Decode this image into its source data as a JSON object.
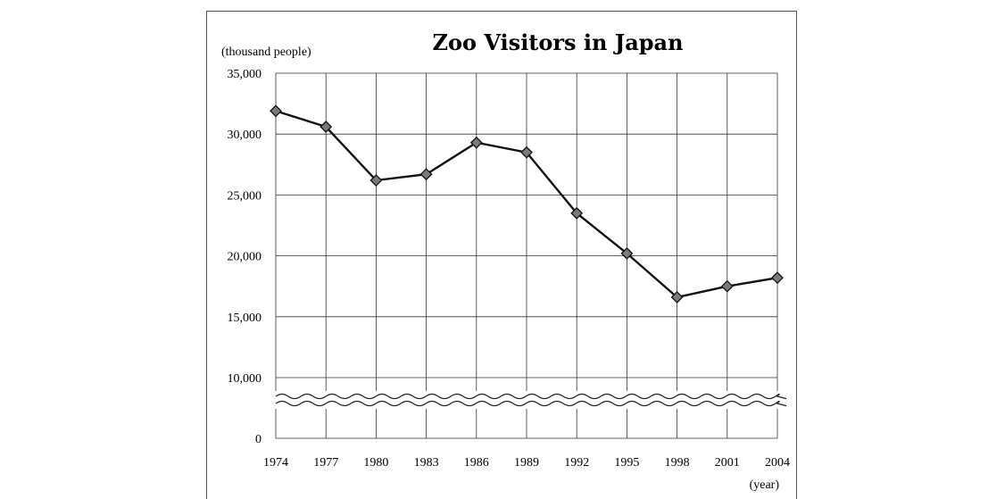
{
  "chart_data": {
    "type": "line",
    "title": "Zoo Visitors in Japan",
    "ylabel": "(thousand people)",
    "xlabel": "(year)",
    "x": [
      1974,
      1977,
      1980,
      1983,
      1986,
      1989,
      1992,
      1995,
      1998,
      2001,
      2004
    ],
    "series": [
      {
        "values": [
          31900,
          30600,
          26200,
          26700,
          29300,
          28500,
          23500,
          20200,
          16600,
          17500,
          18200
        ]
      }
    ],
    "y_ticks": [
      "35,000",
      "30,000",
      "25,000",
      "20,000",
      "15,000",
      "10,000",
      "0"
    ],
    "ylim": [
      0,
      35000
    ],
    "axis_break": "between 0 and 10,000",
    "grid": true,
    "legend": "none",
    "line_color": "#111111",
    "marker": "diamond",
    "marker_color": "#7a7a7a"
  }
}
